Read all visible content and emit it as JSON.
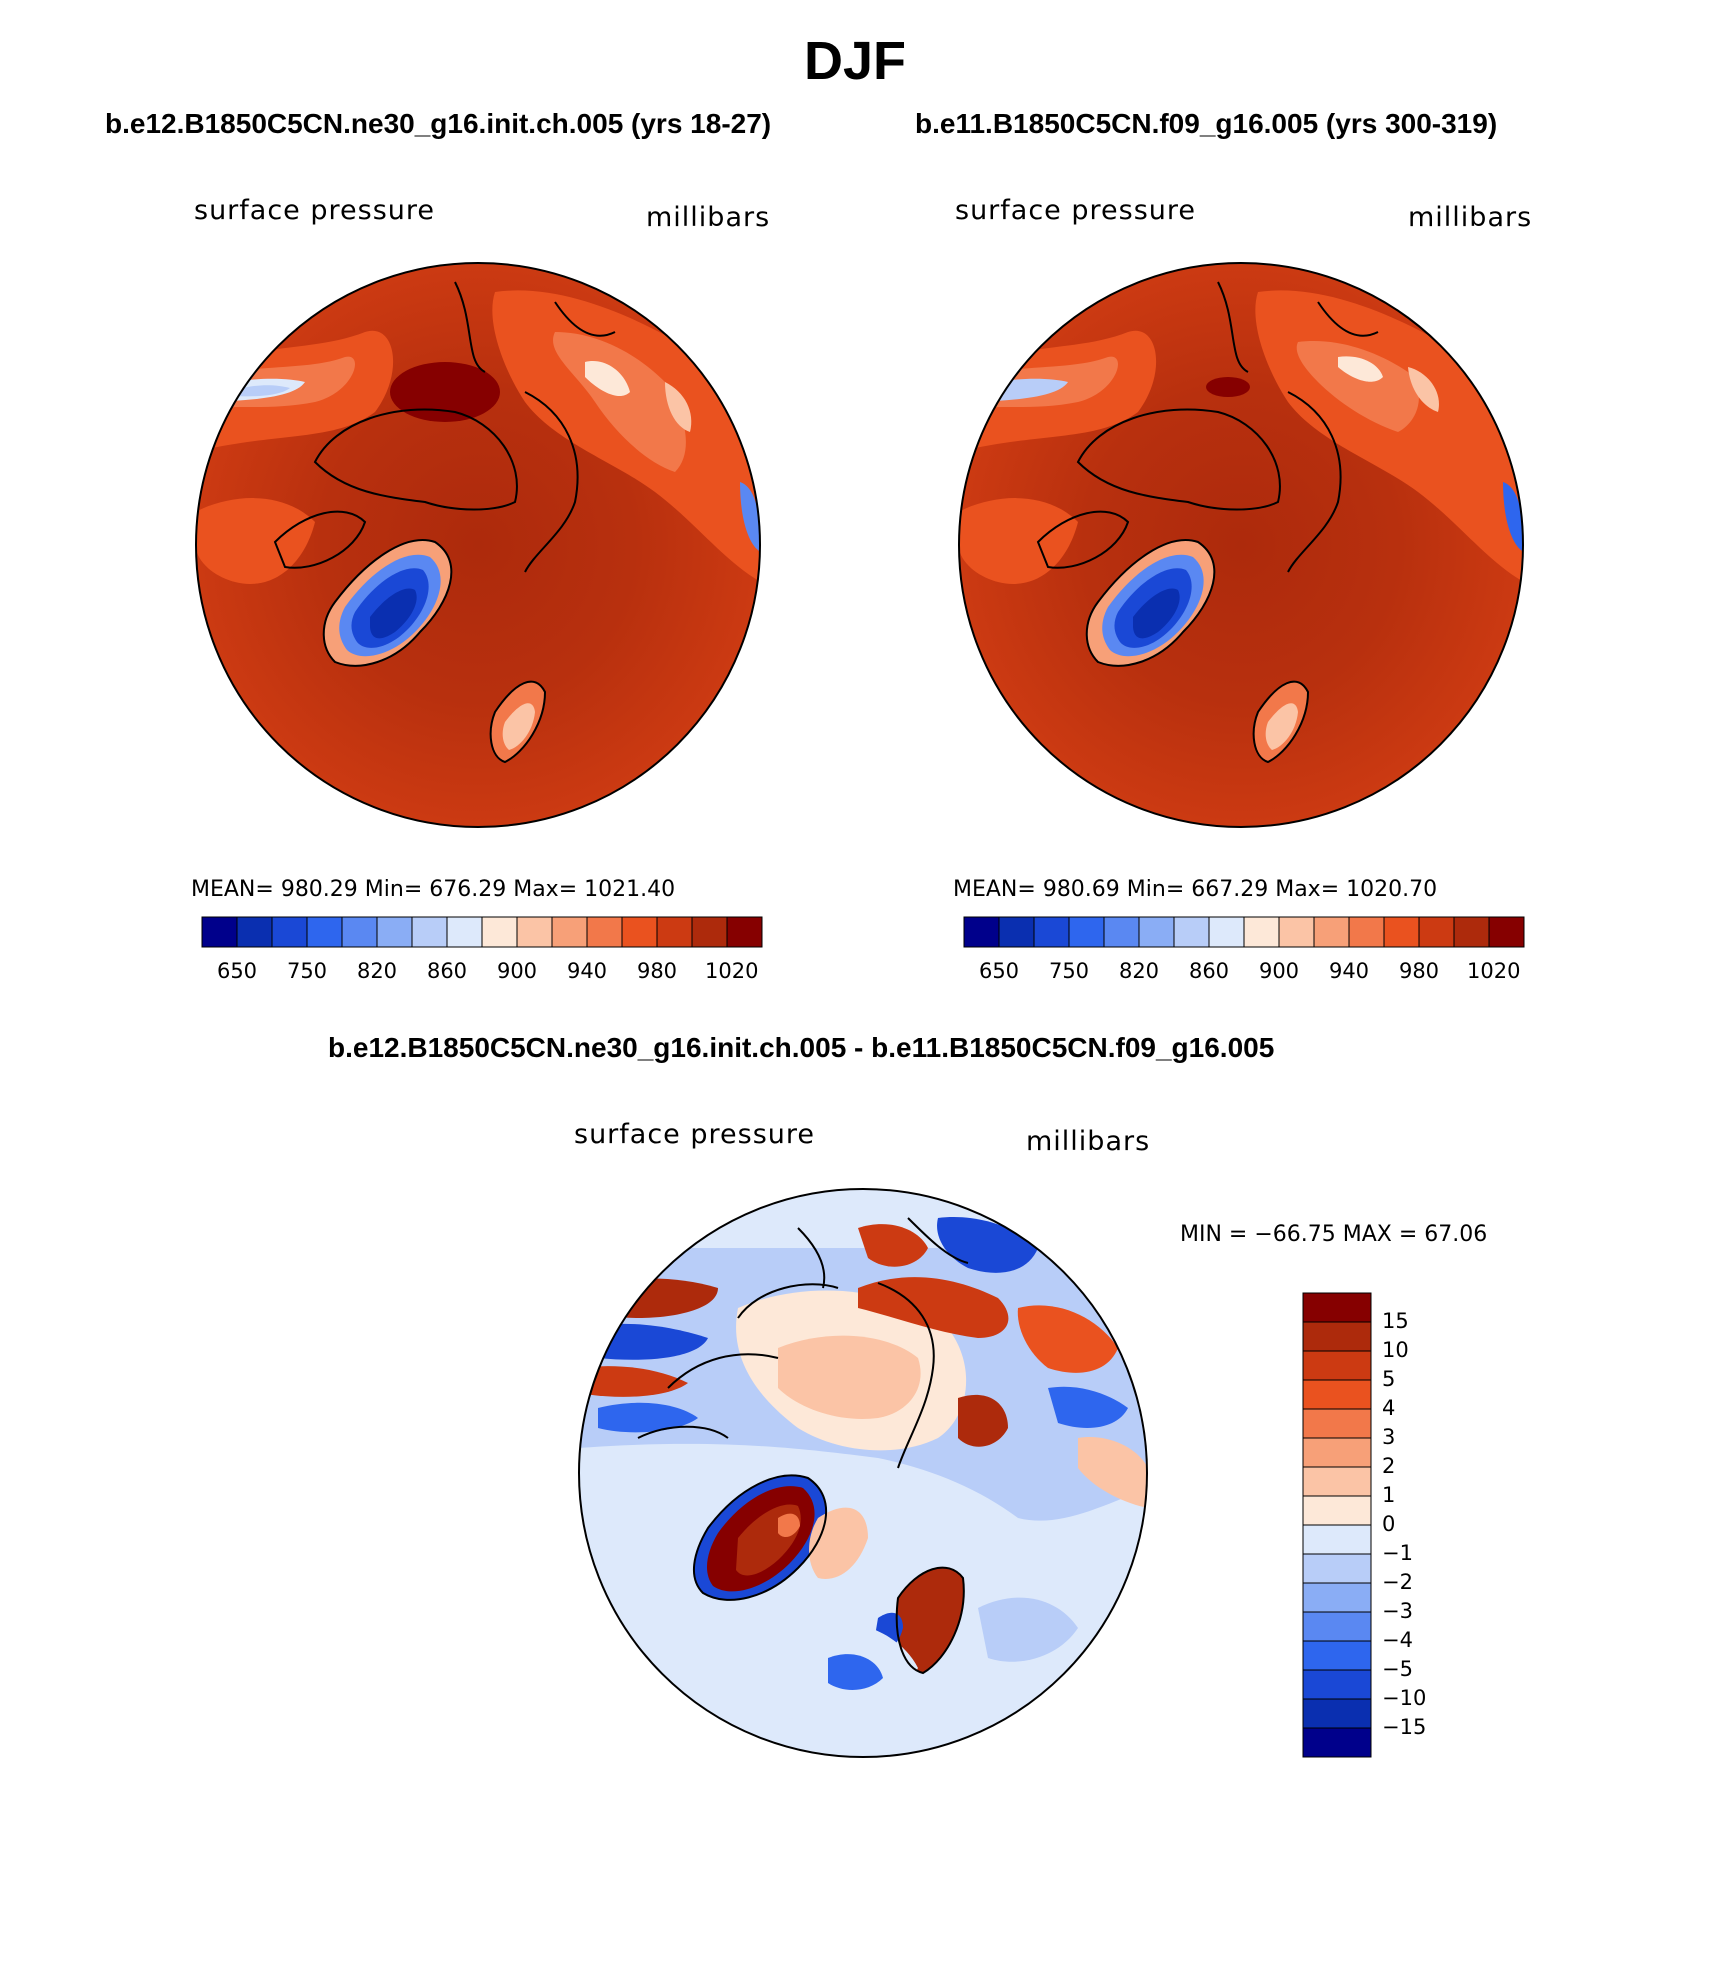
{
  "title": "DJF",
  "panels": [
    {
      "case_title": "b.e12.B1850C5CN.ne30_g16.init.ch.005 (yrs 18-27)",
      "variable": "surface pressure",
      "units": "millibars",
      "stats": "MEAN= 980.29   Min= 676.29   Max= 1021.40",
      "colorbar_labels": [
        "650",
        "750",
        "820",
        "860",
        "900",
        "940",
        "980",
        "1020"
      ]
    },
    {
      "case_title": "b.e11.B1850C5CN.f09_g16.005 (yrs 300-319)",
      "variable": "surface pressure",
      "units": "millibars",
      "stats": "MEAN= 980.69   Min= 667.29   Max= 1020.70",
      "colorbar_labels": [
        "650",
        "750",
        "820",
        "860",
        "900",
        "940",
        "980",
        "1020"
      ]
    }
  ],
  "diff_panel": {
    "title": "b.e12.B1850C5CN.ne30_g16.init.ch.005 - b.e11.B1850C5CN.f09_g16.005",
    "variable": "surface pressure",
    "units": "millibars",
    "minmax": "MIN = −66.75 MAX =   67.06",
    "colorbar_labels": [
      "15",
      "10",
      "5",
      "4",
      "3",
      "2",
      "1",
      "0",
      "−1",
      "−2",
      "−3",
      "−4",
      "−5",
      "−10",
      "−15"
    ]
  },
  "colors": {
    "abs_scale": [
      "#00008b",
      "#0a2fb0",
      "#1a48d6",
      "#2e66ee",
      "#5a88f2",
      "#8aadf5",
      "#b8cdf8",
      "#dde9fb",
      "#fde8d8",
      "#fbc4a6",
      "#f7a078",
      "#f2784a",
      "#ea521f",
      "#cc3a12",
      "#ad2a0c",
      "#860000"
    ],
    "diff_scale": [
      "#00008b",
      "#0a2fb0",
      "#1a48d6",
      "#2e66ee",
      "#5a88f2",
      "#8aadf5",
      "#b8cdf8",
      "#dde9fb",
      "#fde8d8",
      "#fbc4a6",
      "#f7a078",
      "#f2784a",
      "#ea521f",
      "#cc3a12",
      "#ad2a0c",
      "#860000"
    ]
  }
}
